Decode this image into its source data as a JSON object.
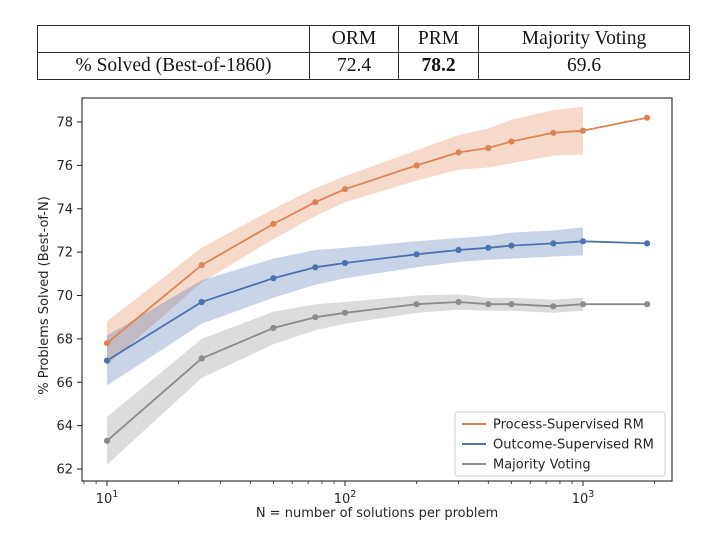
{
  "table": {
    "col_headers": [
      "",
      "ORM",
      "PRM",
      "Majority Voting"
    ],
    "row_label": "% Solved (Best-of-1860)",
    "values": [
      "72.4",
      "78.2",
      "69.6"
    ],
    "bold_value_index": 1
  },
  "chart_data": {
    "type": "line",
    "xscale": "log",
    "x": [
      10,
      25,
      50,
      75,
      100,
      200,
      300,
      400,
      500,
      750,
      1000,
      1860
    ],
    "series": [
      {
        "name": "Process-Supervised RM",
        "color": "#DD8452",
        "values": [
          67.8,
          71.4,
          73.3,
          74.3,
          74.9,
          76.0,
          76.6,
          76.8,
          77.1,
          77.5,
          77.6,
          78.2
        ],
        "band_halfwidth": [
          1.0,
          0.8,
          0.7,
          0.65,
          0.6,
          0.7,
          0.8,
          0.9,
          1.0,
          1.05,
          1.1,
          null
        ]
      },
      {
        "name": "Outcome-Supervised RM",
        "color": "#4C72B0",
        "values": [
          67.0,
          69.7,
          70.8,
          71.3,
          71.5,
          71.9,
          72.1,
          72.2,
          72.3,
          72.4,
          72.5,
          72.4
        ],
        "band_halfwidth": [
          1.15,
          1.0,
          0.9,
          0.8,
          0.7,
          0.6,
          0.55,
          0.55,
          0.6,
          0.6,
          0.65,
          null
        ]
      },
      {
        "name": "Majority Voting",
        "color": "#8C8C8C",
        "values": [
          63.3,
          67.1,
          68.5,
          69.0,
          69.2,
          69.6,
          69.7,
          69.6,
          69.6,
          69.5,
          69.6,
          69.6
        ],
        "band_halfwidth": [
          1.1,
          0.9,
          0.75,
          0.6,
          0.5,
          0.4,
          0.35,
          0.3,
          0.3,
          0.3,
          0.3,
          null
        ]
      }
    ],
    "xlabel": "N = number of solutions per problem",
    "ylabel": "% Problems Solved (Best-of-N)",
    "y_ticks": [
      62,
      64,
      66,
      68,
      70,
      72,
      74,
      76,
      78
    ],
    "x_major_ticks": [
      {
        "value": 10,
        "base": "10",
        "exp": "1"
      },
      {
        "value": 100,
        "base": "10",
        "exp": "2"
      },
      {
        "value": 1000,
        "base": "10",
        "exp": "3"
      }
    ],
    "xlim": [
      7.8,
      2370
    ],
    "ylim": [
      61.4,
      79.1
    ],
    "grid": false,
    "legend_position": "lower right",
    "band_opacity": 0.3,
    "axis_color": "#262626",
    "legend_border_color": "#cccccc"
  }
}
